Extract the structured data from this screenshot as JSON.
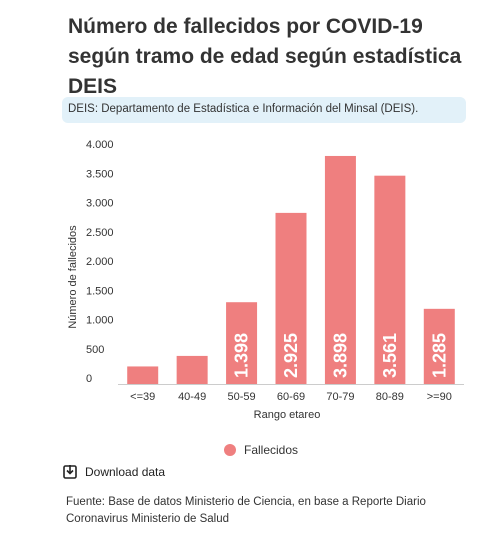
{
  "header": {
    "title": "Número de fallecidos por COVID-19 según tramo de edad según estadística DEIS"
  },
  "note": {
    "text": "DEIS: Departamento de Estadística e Información del Minsal (DEIS)."
  },
  "legend": {
    "label": "Fallecidos"
  },
  "download": {
    "label": "Download data",
    "icon": "download-icon"
  },
  "source": {
    "text": "Fuente: Base de datos Ministerio de Ciencia, en base a Reporte Diario Coronavirus Ministerio de Salud"
  },
  "colors": {
    "bar": "#ef7f7f",
    "note_bg": "#e2f1f9",
    "text": "#333333"
  },
  "chart_data": {
    "type": "bar",
    "categories": [
      "<=39",
      "40-49",
      "50-59",
      "60-69",
      "70-79",
      "80-89",
      ">=90"
    ],
    "series": [
      {
        "name": "Fallecidos",
        "values": [
          300,
          480,
          1398,
          2925,
          3898,
          3561,
          1285
        ],
        "data_labels": [
          null,
          null,
          "1.398",
          "2.925",
          "3.898",
          "3.561",
          "1.285"
        ]
      }
    ],
    "xlabel": "Rango etareo",
    "ylabel": "Número de fallecidos",
    "ylim": [
      0,
      4000
    ],
    "yticks": [
      0,
      500,
      1000,
      1500,
      2000,
      2500,
      3000,
      3500,
      4000
    ],
    "ytick_labels": [
      "0",
      "500",
      "1.000",
      "1.500",
      "2.000",
      "2.500",
      "3.000",
      "3.500",
      "4.000"
    ],
    "grid": false,
    "legend_position": "bottom"
  }
}
